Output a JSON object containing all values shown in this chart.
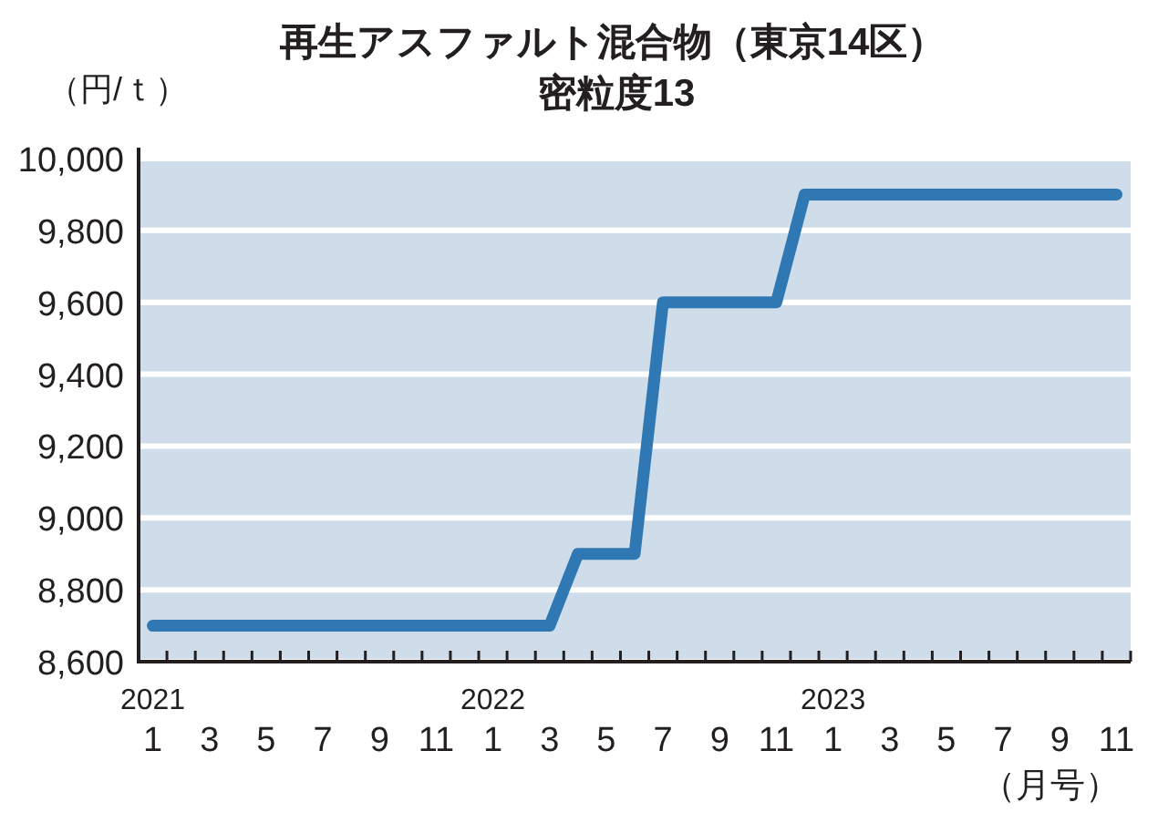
{
  "chart_data": {
    "type": "line",
    "title": "再生アスファルト混合物（東京14区）",
    "subtitle": "密粒度13",
    "ylabel": "（円/ｔ）",
    "xlabel": "（月号）",
    "categories": [
      "2021\n1",
      null,
      "3",
      null,
      "5",
      null,
      "7",
      null,
      "9",
      null,
      "11",
      null,
      "2022\n1",
      null,
      "3",
      null,
      "5",
      null,
      "7",
      null,
      "9",
      null,
      "11",
      null,
      "2023\n1",
      null,
      "3",
      null,
      "5",
      null,
      "7",
      null,
      "9",
      null,
      "11"
    ],
    "series": [
      {
        "color": "#2f78b3",
        "values": [
          8700,
          8700,
          8700,
          8700,
          8700,
          8700,
          8700,
          8700,
          8700,
          8700,
          8700,
          8700,
          8700,
          8700,
          8700,
          8900,
          8900,
          8900,
          9600,
          9600,
          9600,
          9600,
          9600,
          9900,
          9900,
          9900,
          9900,
          9900,
          9900,
          9900,
          9900,
          9900,
          9900,
          9900,
          9900
        ]
      }
    ],
    "ylim": [
      8600,
      10000
    ],
    "yticks": [
      {
        "value": 8600,
        "label": "8,600"
      },
      {
        "value": 8800,
        "label": "8,800"
      },
      {
        "value": 9000,
        "label": "9,000"
      },
      {
        "value": 9200,
        "label": "9,200"
      },
      {
        "value": 9400,
        "label": "9,400"
      },
      {
        "value": 9600,
        "label": "9,600"
      },
      {
        "value": 9800,
        "label": "9,800"
      },
      {
        "value": 10000,
        "label": "10,000"
      }
    ],
    "grid": "y"
  }
}
